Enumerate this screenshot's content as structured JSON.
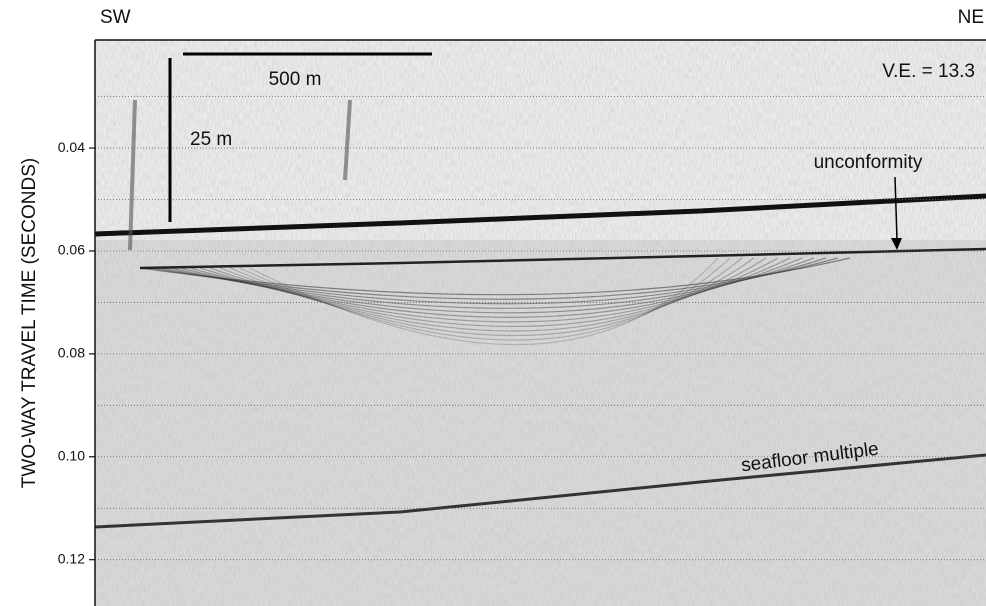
{
  "chart_data": {
    "type": "seismic",
    "y_label": "TWO-WAY TRAVEL TIME (SECONDS)",
    "ylim": [
      0.019,
      0.129
    ],
    "y_inverted": true,
    "yticks": [
      0.04,
      0.06,
      0.08,
      {
        "value": 0.1,
        "label": "0.10"
      },
      0.12
    ],
    "minor_yticks": [
      0.03,
      0.05,
      0.07,
      0.09,
      0.11
    ],
    "grid": true,
    "left_label": "SW",
    "right_label": "NE",
    "vertical_exaggeration": "V.E. = 13.3",
    "horizontal_scale": "500 m",
    "vertical_scale": "25 m",
    "annotations": [
      "unconformity",
      "seafloor multiple"
    ]
  }
}
